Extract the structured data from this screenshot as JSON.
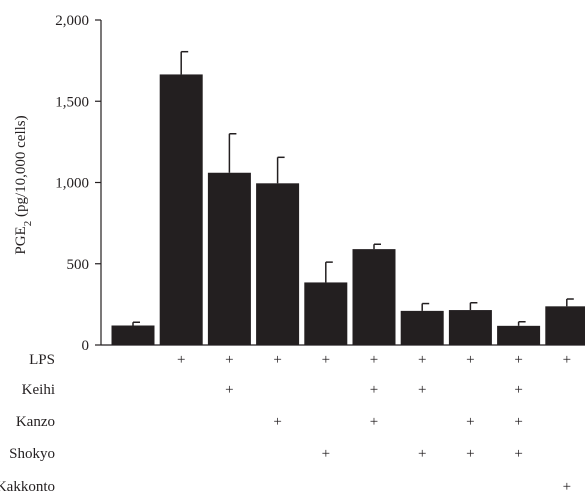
{
  "chart_data": {
    "type": "bar",
    "ylabel_main": "PGE",
    "ylabel_sub": "2",
    "ylabel_rest": " (pg/10,000 cells)",
    "ylim": [
      0,
      2000
    ],
    "yticks": [
      0,
      500,
      1000,
      1500,
      2000
    ],
    "ytick_labels": [
      "0",
      "500",
      "1,000",
      "1,500",
      "2,000"
    ],
    "bar_color": "#231f20",
    "values": [
      120,
      1665,
      1060,
      995,
      385,
      590,
      210,
      215,
      118,
      238
    ],
    "errors": [
      20,
      140,
      240,
      160,
      125,
      30,
      45,
      45,
      25,
      45
    ],
    "treatments": [
      {
        "label": "LPS",
        "marks": [
          false,
          true,
          true,
          true,
          true,
          true,
          true,
          true,
          true,
          true
        ]
      },
      {
        "label": "Keihi",
        "marks": [
          false,
          false,
          true,
          false,
          false,
          true,
          true,
          false,
          true,
          false
        ]
      },
      {
        "label": "Kanzo",
        "marks": [
          false,
          false,
          false,
          true,
          false,
          true,
          false,
          true,
          true,
          false
        ]
      },
      {
        "label": "Shokyo",
        "marks": [
          false,
          false,
          false,
          false,
          true,
          false,
          true,
          true,
          true,
          false
        ]
      },
      {
        "label": "Kakkonto",
        "marks": [
          false,
          false,
          false,
          false,
          false,
          false,
          false,
          false,
          false,
          true
        ]
      }
    ],
    "mark_symbol": "+",
    "grid": false,
    "legend": "none"
  }
}
